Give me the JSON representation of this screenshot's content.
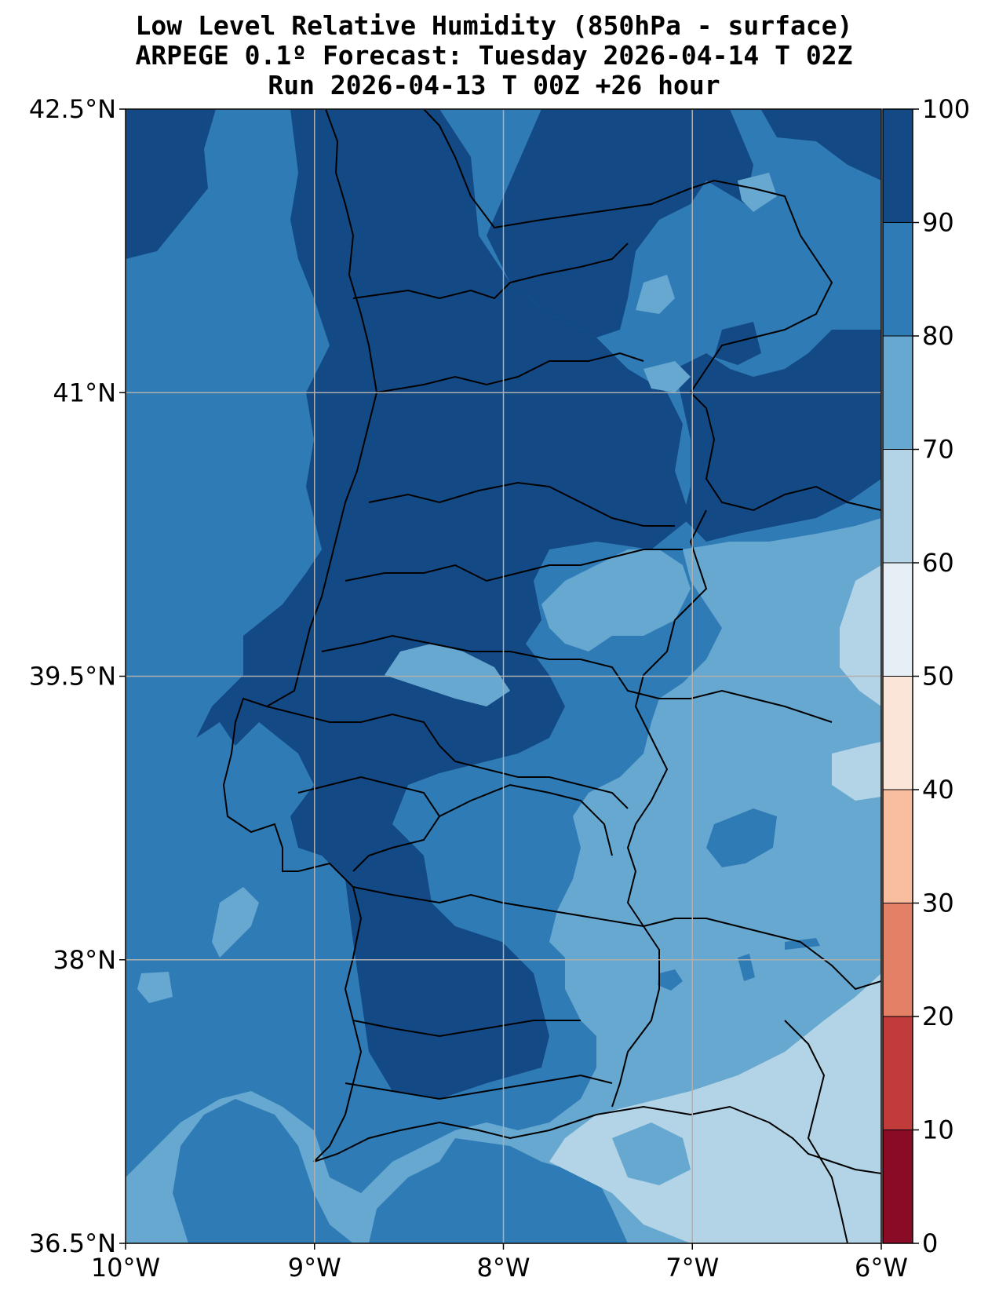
{
  "title": {
    "line1": "Low Level Relative Humidity (850hPa - surface)",
    "line2": "ARPEGE 0.1º Forecast: Tuesday 2026-04-14 T 02Z",
    "line3": "Run 2026-04-13 T 00Z +26 hour"
  },
  "map": {
    "lon_range": [
      -10,
      -6
    ],
    "lat_range": [
      36.5,
      42.5
    ],
    "gridlines": true,
    "x_ticks": [
      {
        "value": -10,
        "label": "10°W"
      },
      {
        "value": -9,
        "label": "9°W"
      },
      {
        "value": -8,
        "label": "8°W"
      },
      {
        "value": -7,
        "label": "7°W"
      },
      {
        "value": -6,
        "label": "6°W"
      }
    ],
    "y_ticks": [
      {
        "value": 42.5,
        "label": "42.5°N"
      },
      {
        "value": 41,
        "label": "41°N"
      },
      {
        "value": 39.5,
        "label": "39.5°N"
      },
      {
        "value": 38,
        "label": "38°N"
      },
      {
        "value": 36.5,
        "label": "36.5°N"
      }
    ]
  },
  "colorbar": {
    "range": [
      0,
      100
    ],
    "levels": [
      {
        "from": 0,
        "to": 10,
        "color": "#8a0b25"
      },
      {
        "from": 10,
        "to": 20,
        "color": "#c13b3b"
      },
      {
        "from": 20,
        "to": 30,
        "color": "#e48066"
      },
      {
        "from": 30,
        "to": 40,
        "color": "#f9bda0"
      },
      {
        "from": 40,
        "to": 50,
        "color": "#fbe5d9"
      },
      {
        "from": 50,
        "to": 60,
        "color": "#e6eff6"
      },
      {
        "from": 60,
        "to": 70,
        "color": "#b3d4e6"
      },
      {
        "from": 70,
        "to": 80,
        "color": "#67a8d1"
      },
      {
        "from": 80,
        "to": 90,
        "color": "#2f7bb6"
      },
      {
        "from": 90,
        "to": 100,
        "color": "#134a85"
      }
    ],
    "tick_labels": [
      "0",
      "10",
      "20",
      "30",
      "40",
      "50",
      "60",
      "70",
      "80",
      "90",
      "100"
    ]
  },
  "colors": {
    "rh_90_100": "#134a85",
    "rh_80_90": "#2f7bb6",
    "rh_70_80": "#67a8d1",
    "rh_60_70": "#b3d4e6",
    "grid": "#b0b0b0",
    "borders": "#000000"
  }
}
